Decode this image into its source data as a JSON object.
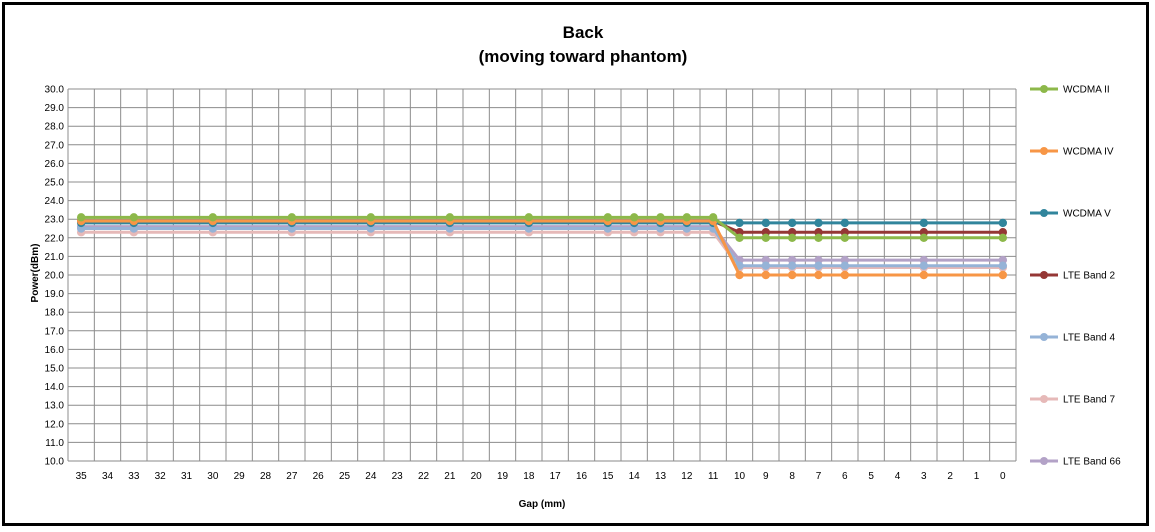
{
  "chart_data": {
    "type": "line",
    "title": "Back",
    "subtitle": "(moving toward phantom)",
    "xlabel": "Gap (mm)",
    "ylabel": "Power(dBm)",
    "x_categories": [
      "35",
      "34",
      "33",
      "32",
      "31",
      "30",
      "29",
      "28",
      "27",
      "26",
      "25",
      "24",
      "23",
      "22",
      "21",
      "20",
      "19",
      "18",
      "17",
      "16",
      "15",
      "14",
      "13",
      "12",
      "11",
      "10",
      "9",
      "8",
      "7",
      "6",
      "5",
      "4",
      "3",
      "2",
      "1",
      "0"
    ],
    "ylim": [
      10.0,
      30.0
    ],
    "ytick_step": 1.0,
    "grid": true,
    "legend_position": "right",
    "series": [
      {
        "name": "WCDMA II",
        "color": "#8DB84A",
        "points": [
          [
            35,
            23.1
          ],
          [
            33,
            23.1
          ],
          [
            30,
            23.1
          ],
          [
            27,
            23.1
          ],
          [
            24,
            23.1
          ],
          [
            21,
            23.1
          ],
          [
            18,
            23.1
          ],
          [
            15,
            23.1
          ],
          [
            14,
            23.1
          ],
          [
            13,
            23.1
          ],
          [
            12,
            23.1
          ],
          [
            11,
            23.1
          ],
          [
            10,
            22.0
          ],
          [
            9,
            22.0
          ],
          [
            8,
            22.0
          ],
          [
            7,
            22.0
          ],
          [
            6,
            22.0
          ],
          [
            3,
            22.0
          ],
          [
            0,
            22.0
          ]
        ]
      },
      {
        "name": "WCDMA IV",
        "color": "#F79646",
        "points": [
          [
            35,
            22.9
          ],
          [
            33,
            22.9
          ],
          [
            30,
            22.9
          ],
          [
            27,
            22.9
          ],
          [
            24,
            22.9
          ],
          [
            21,
            22.9
          ],
          [
            18,
            22.9
          ],
          [
            15,
            22.9
          ],
          [
            14,
            22.9
          ],
          [
            13,
            22.9
          ],
          [
            12,
            22.9
          ],
          [
            11,
            22.9
          ],
          [
            10,
            20.0
          ],
          [
            9,
            20.0
          ],
          [
            8,
            20.0
          ],
          [
            7,
            20.0
          ],
          [
            6,
            20.0
          ],
          [
            3,
            20.0
          ],
          [
            0,
            20.0
          ]
        ]
      },
      {
        "name": "WCDMA V",
        "color": "#31859C",
        "points": [
          [
            35,
            22.8
          ],
          [
            33,
            22.8
          ],
          [
            30,
            22.8
          ],
          [
            27,
            22.8
          ],
          [
            24,
            22.8
          ],
          [
            21,
            22.8
          ],
          [
            18,
            22.8
          ],
          [
            15,
            22.8
          ],
          [
            14,
            22.8
          ],
          [
            13,
            22.8
          ],
          [
            12,
            22.8
          ],
          [
            11,
            22.8
          ],
          [
            10,
            22.8
          ],
          [
            9,
            22.8
          ],
          [
            8,
            22.8
          ],
          [
            7,
            22.8
          ],
          [
            6,
            22.8
          ],
          [
            3,
            22.8
          ],
          [
            0,
            22.8
          ]
        ]
      },
      {
        "name": "LTE Band 2",
        "color": "#953735",
        "points": [
          [
            35,
            22.9
          ],
          [
            33,
            22.9
          ],
          [
            30,
            22.9
          ],
          [
            27,
            22.9
          ],
          [
            24,
            22.9
          ],
          [
            21,
            22.9
          ],
          [
            18,
            22.9
          ],
          [
            15,
            22.9
          ],
          [
            14,
            22.9
          ],
          [
            13,
            22.9
          ],
          [
            12,
            22.9
          ],
          [
            11,
            22.9
          ],
          [
            10,
            22.3
          ],
          [
            9,
            22.3
          ],
          [
            8,
            22.3
          ],
          [
            7,
            22.3
          ],
          [
            6,
            22.3
          ],
          [
            3,
            22.3
          ],
          [
            0,
            22.3
          ]
        ]
      },
      {
        "name": "LTE Band 4",
        "color": "#95B3D7",
        "points": [
          [
            35,
            22.5
          ],
          [
            33,
            22.5
          ],
          [
            30,
            22.5
          ],
          [
            27,
            22.5
          ],
          [
            24,
            22.5
          ],
          [
            21,
            22.5
          ],
          [
            18,
            22.5
          ],
          [
            15,
            22.5
          ],
          [
            14,
            22.5
          ],
          [
            13,
            22.5
          ],
          [
            12,
            22.5
          ],
          [
            11,
            22.5
          ],
          [
            10,
            20.5
          ],
          [
            9,
            20.5
          ],
          [
            8,
            20.5
          ],
          [
            7,
            20.5
          ],
          [
            6,
            20.5
          ],
          [
            3,
            20.5
          ],
          [
            0,
            20.5
          ]
        ]
      },
      {
        "name": "LTE Band 7",
        "color": "#E6B9B8",
        "points": [
          [
            35,
            22.3
          ],
          [
            33,
            22.3
          ],
          [
            30,
            22.3
          ],
          [
            27,
            22.3
          ],
          [
            24,
            22.3
          ],
          [
            21,
            22.3
          ],
          [
            18,
            22.3
          ],
          [
            15,
            22.3
          ],
          [
            14,
            22.3
          ],
          [
            13,
            22.3
          ],
          [
            12,
            22.3
          ],
          [
            11,
            22.3
          ],
          [
            10,
            20.4
          ],
          [
            9,
            20.4
          ],
          [
            8,
            20.4
          ],
          [
            7,
            20.4
          ],
          [
            6,
            20.4
          ],
          [
            3,
            20.4
          ],
          [
            0,
            20.4
          ]
        ]
      },
      {
        "name": "LTE Band 66",
        "color": "#B3A2C7",
        "points": [
          [
            35,
            22.6
          ],
          [
            33,
            22.6
          ],
          [
            30,
            22.6
          ],
          [
            27,
            22.6
          ],
          [
            24,
            22.6
          ],
          [
            21,
            22.6
          ],
          [
            18,
            22.6
          ],
          [
            15,
            22.6
          ],
          [
            14,
            22.6
          ],
          [
            13,
            22.6
          ],
          [
            12,
            22.6
          ],
          [
            11,
            22.6
          ],
          [
            10,
            20.8
          ],
          [
            9,
            20.8
          ],
          [
            8,
            20.8
          ],
          [
            7,
            20.8
          ],
          [
            6,
            20.8
          ],
          [
            3,
            20.8
          ],
          [
            0,
            20.8
          ]
        ]
      }
    ]
  }
}
